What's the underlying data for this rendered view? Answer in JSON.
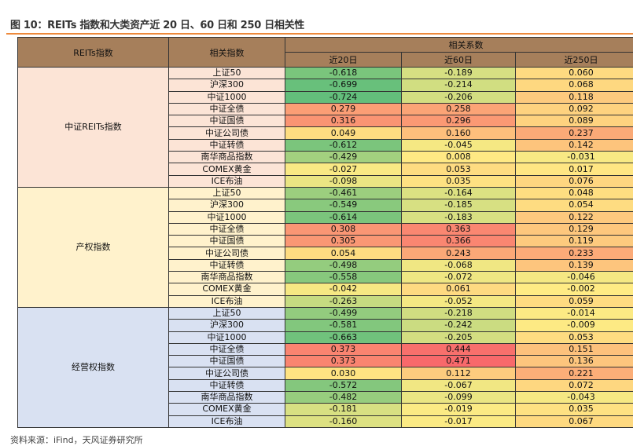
{
  "title": "图 10：REITs 指数和大类资产近 20 日、60 日和 250 日相关性",
  "source": "资料来源：iFind，天风证券研究所",
  "header": {
    "col1": "REITs指数",
    "col2": "相关指数",
    "group": "相关系数",
    "periods": [
      "近20日",
      "近60日",
      "近250日"
    ]
  },
  "colors": {
    "header": "#a67f5b",
    "groups": [
      "#fce4d6",
      "#fff2cc",
      "#d9e1f2"
    ],
    "neg": "#63be7b",
    "mid": "#ffeb84",
    "pos": "#f8696b"
  },
  "groups": [
    {
      "name": "中证REITs指数",
      "rows": [
        [
          "上证50",
          "-0.618",
          "-0.189",
          "0.060"
        ],
        [
          "沪深300",
          "-0.699",
          "-0.214",
          "0.068"
        ],
        [
          "中证1000",
          "-0.724",
          "-0.206",
          "0.118"
        ],
        [
          "中证全债",
          "0.279",
          "0.258",
          "0.092"
        ],
        [
          "中证国债",
          "0.316",
          "0.296",
          "0.089"
        ],
        [
          "中证公司债",
          "0.049",
          "0.160",
          "0.237"
        ],
        [
          "中证转债",
          "-0.612",
          "-0.045",
          "0.142"
        ],
        [
          "南华商品指数",
          "-0.429",
          "0.008",
          "-0.031"
        ],
        [
          "COMEX黄金",
          "-0.027",
          "0.053",
          "0.017"
        ],
        [
          "ICE布油",
          "-0.098",
          "0.035",
          "0.076"
        ]
      ]
    },
    {
      "name": "产权指数",
      "rows": [
        [
          "上证50",
          "-0.461",
          "-0.164",
          "0.048"
        ],
        [
          "沪深300",
          "-0.549",
          "-0.185",
          "0.054"
        ],
        [
          "中证1000",
          "-0.614",
          "-0.183",
          "0.122"
        ],
        [
          "中证全债",
          "0.308",
          "0.363",
          "0.129"
        ],
        [
          "中证国债",
          "0.305",
          "0.366",
          "0.119"
        ],
        [
          "中证公司债",
          "0.054",
          "0.243",
          "0.233"
        ],
        [
          "中证转债",
          "-0.498",
          "-0.068",
          "0.139"
        ],
        [
          "南华商品指数",
          "-0.558",
          "-0.072",
          "-0.046"
        ],
        [
          "COMEX黄金",
          "-0.042",
          "0.061",
          "-0.002"
        ],
        [
          "ICE布油",
          "-0.263",
          "-0.052",
          "0.059"
        ]
      ]
    },
    {
      "name": "经营权指数",
      "rows": [
        [
          "上证50",
          "-0.499",
          "-0.218",
          "-0.014"
        ],
        [
          "沪深300",
          "-0.581",
          "-0.242",
          "-0.009"
        ],
        [
          "中证1000",
          "-0.663",
          "-0.205",
          "0.053"
        ],
        [
          "中证全债",
          "0.373",
          "0.444",
          "0.151"
        ],
        [
          "中证国债",
          "0.373",
          "0.471",
          "0.136"
        ],
        [
          "中证公司债",
          "0.030",
          "0.112",
          "0.221"
        ],
        [
          "中证转债",
          "-0.572",
          "-0.067",
          "0.072"
        ],
        [
          "南华商品指数",
          "-0.482",
          "-0.099",
          "-0.043"
        ],
        [
          "COMEX黄金",
          "-0.181",
          "-0.019",
          "0.035"
        ],
        [
          "ICE布油",
          "-0.160",
          "-0.017",
          "0.067"
        ]
      ]
    }
  ]
}
